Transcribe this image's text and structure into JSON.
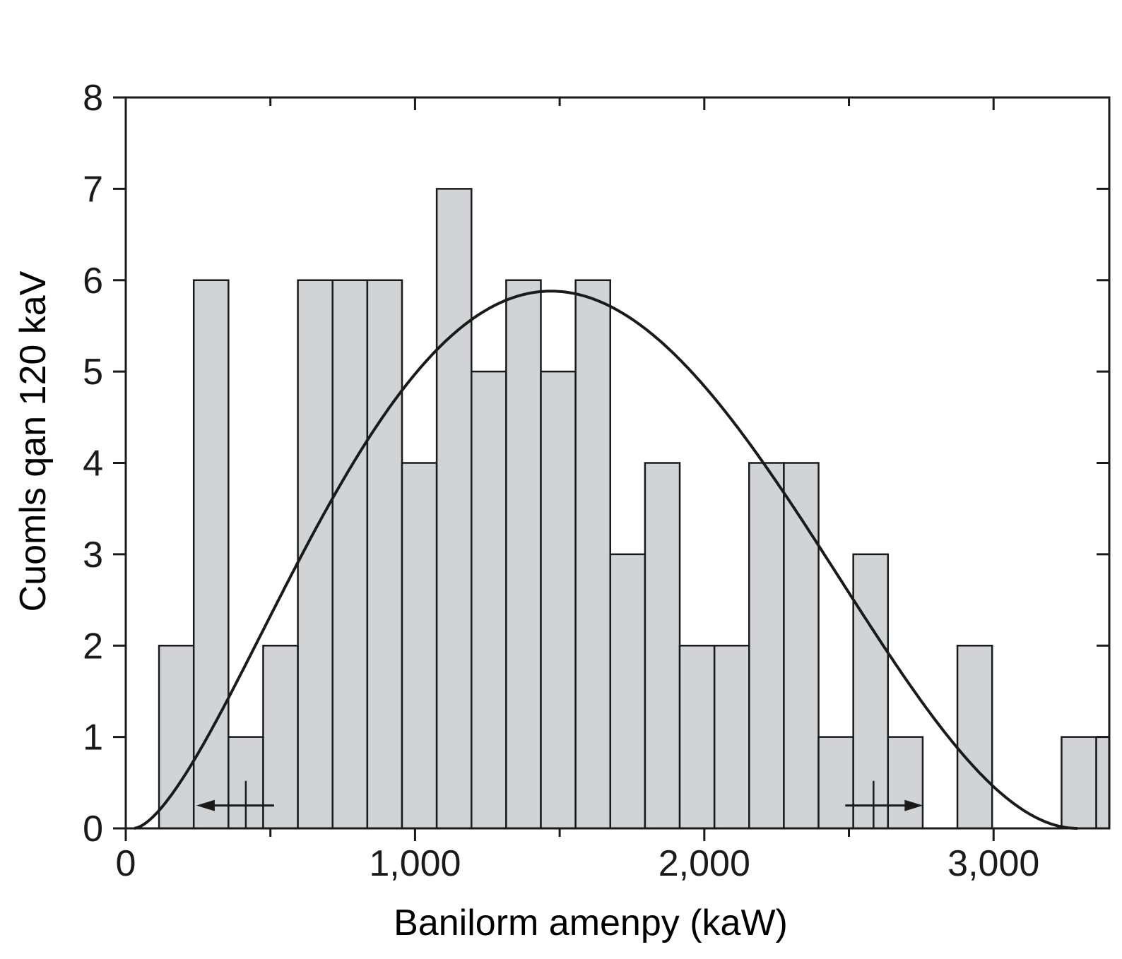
{
  "chart_data": {
    "type": "bar",
    "xlabel": "Banilorm amenpy (kaW)",
    "ylabel": "Cuomls qan 120 kaV",
    "xlim": [
      0,
      3400
    ],
    "ylim": [
      0,
      8
    ],
    "x_ticks": [
      0,
      1000,
      2000,
      3000
    ],
    "x_tick_labels": [
      "0",
      "1,000",
      "2,000",
      "3,000"
    ],
    "y_ticks": [
      0,
      1,
      2,
      3,
      4,
      5,
      6,
      7,
      8
    ],
    "y_tick_labels": [
      "0",
      "1",
      "2",
      "3",
      "4",
      "5",
      "6",
      "7",
      "8"
    ],
    "bin_width": 120,
    "bin_starts": [
      115,
      235,
      355,
      475,
      595,
      715,
      835,
      955,
      1075,
      1195,
      1315,
      1435,
      1555,
      1675,
      1795,
      1915,
      2035,
      2155,
      2275,
      2395,
      2515,
      2635,
      2755,
      2875,
      2995,
      3115,
      3235,
      3355
    ],
    "counts": [
      2,
      6,
      1,
      2,
      6,
      6,
      6,
      4,
      7,
      5,
      6,
      5,
      6,
      3,
      4,
      2,
      2,
      4,
      4,
      1,
      3,
      1,
      0,
      2,
      0,
      0,
      1,
      1
    ],
    "fit_curve": {
      "type": "beta-shaped fit",
      "x_start": 30,
      "x_end": 3290,
      "peak_x": 1470,
      "peak_y": 5.88
    },
    "markers": [
      {
        "x": 415,
        "arrow_direction": "left"
      },
      {
        "x": 2585,
        "arrow_direction": "right"
      }
    ],
    "grid": false,
    "colors": {
      "fill": "#d1d3d6",
      "stroke": "#1a1a1a"
    }
  }
}
